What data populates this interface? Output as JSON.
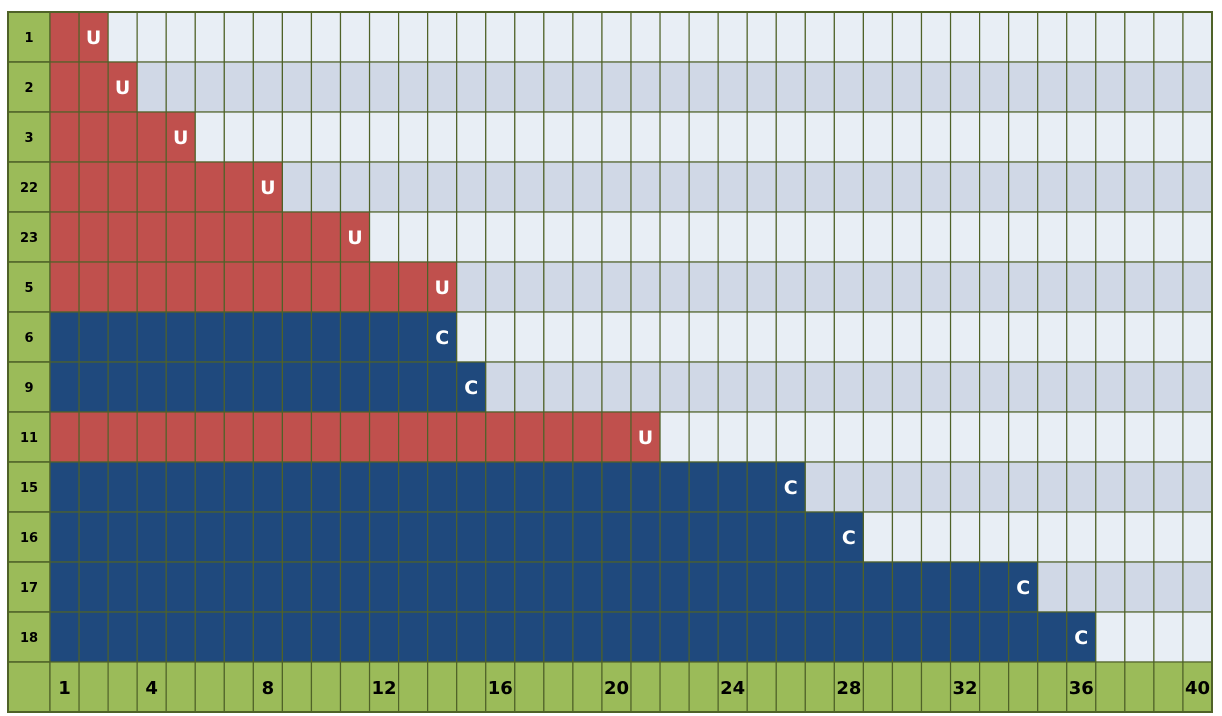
{
  "chart_data": {
    "type": "heatmap",
    "rows": [
      {
        "label": "1",
        "length": 2,
        "status": "U"
      },
      {
        "label": "2",
        "length": 3,
        "status": "U"
      },
      {
        "label": "3",
        "length": 5,
        "status": "U"
      },
      {
        "label": "22",
        "length": 8,
        "status": "U"
      },
      {
        "label": "23",
        "length": 11,
        "status": "U"
      },
      {
        "label": "5",
        "length": 14,
        "status": "U"
      },
      {
        "label": "6",
        "length": 14,
        "status": "C"
      },
      {
        "label": "9",
        "length": 15,
        "status": "C"
      },
      {
        "label": "11",
        "length": 21,
        "status": "U"
      },
      {
        "label": "15",
        "length": 26,
        "status": "C"
      },
      {
        "label": "16",
        "length": 28,
        "status": "C"
      },
      {
        "label": "17",
        "length": 34,
        "status": "C"
      },
      {
        "label": "18",
        "length": 36,
        "status": "C"
      }
    ],
    "x_max": 40,
    "x_tick_labels": [
      "1",
      "4",
      "8",
      "12",
      "16",
      "20",
      "24",
      "28",
      "32",
      "36",
      "40"
    ],
    "x_tick_values": [
      1,
      4,
      8,
      12,
      16,
      20,
      24,
      28,
      32,
      36,
      40
    ],
    "colors": {
      "U": "#c0504d",
      "C": "#1f497d",
      "empty_light": "#e8eef5",
      "empty_dark": "#d0d8e6",
      "header": "#9bbb59",
      "grid": "#4f6228",
      "marker_text": "#ffffff"
    }
  }
}
